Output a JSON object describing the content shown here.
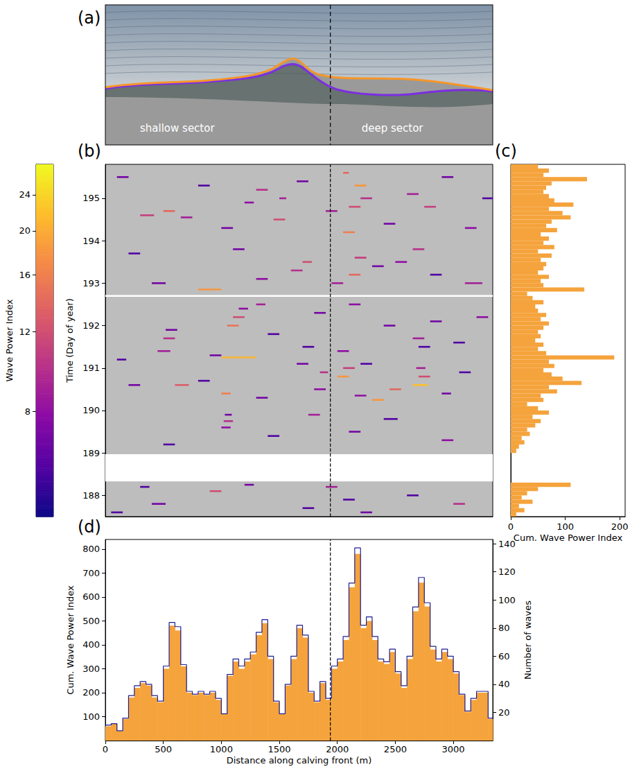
{
  "photo": {
    "title": "(a)",
    "labels": [
      "shallow sector",
      "deep sector"
    ],
    "divider_x": 1940,
    "xlim": [
      0,
      3340
    ]
  },
  "chart_data": [
    {
      "type": "segments",
      "title": "(b)",
      "ylabel": "Time (Day of year)",
      "xlim": [
        0,
        3340
      ],
      "ylim": [
        187.5,
        195.8
      ],
      "yticks": [
        188,
        189,
        190,
        191,
        192,
        193,
        194,
        195
      ],
      "tick_labels": "y",
      "grid": false,
      "divider_x": 1940,
      "no_data": [
        [
          188.33,
          188.97
        ],
        [
          192.68,
          192.72
        ]
      ],
      "colorbar": {
        "label": "Wave Power Index",
        "range": [
          4.7,
          28
        ],
        "ticks": [
          8,
          12,
          16,
          20,
          24
        ],
        "log": true
      },
      "segments": [
        {
          "x0": 50,
          "x1": 150,
          "t": 187.6,
          "wpi": 6
        },
        {
          "x0": 400,
          "x1": 520,
          "t": 187.8,
          "wpi": 7
        },
        {
          "x0": 900,
          "x1": 1000,
          "t": 188.1,
          "wpi": 12
        },
        {
          "x0": 1700,
          "x1": 1800,
          "t": 187.7,
          "wpi": 6
        },
        {
          "x0": 1900,
          "x1": 2000,
          "t": 188.2,
          "wpi": 9
        },
        {
          "x0": 2050,
          "x1": 2150,
          "t": 187.9,
          "wpi": 6
        },
        {
          "x0": 2200,
          "x1": 2300,
          "t": 187.6,
          "wpi": 7
        },
        {
          "x0": 2600,
          "x1": 2700,
          "t": 188.0,
          "wpi": 6
        },
        {
          "x0": 3000,
          "x1": 3100,
          "t": 187.8,
          "wpi": 10
        },
        {
          "x0": 1200,
          "x1": 1280,
          "t": 188.25,
          "wpi": 7
        },
        {
          "x0": 300,
          "x1": 380,
          "t": 188.2,
          "wpi": 6
        },
        {
          "x0": 500,
          "x1": 600,
          "t": 189.2,
          "wpi": 6
        },
        {
          "x0": 1000,
          "x1": 1080,
          "t": 189.6,
          "wpi": 8
        },
        {
          "x0": 1020,
          "x1": 1100,
          "t": 189.75,
          "wpi": 10
        },
        {
          "x0": 1030,
          "x1": 1090,
          "t": 189.9,
          "wpi": 7
        },
        {
          "x0": 1400,
          "x1": 1500,
          "t": 189.4,
          "wpi": 6
        },
        {
          "x0": 2100,
          "x1": 2200,
          "t": 189.5,
          "wpi": 7
        },
        {
          "x0": 2400,
          "x1": 2520,
          "t": 189.8,
          "wpi": 6
        },
        {
          "x0": 2900,
          "x1": 3000,
          "t": 189.3,
          "wpi": 8
        },
        {
          "x0": 1750,
          "x1": 1850,
          "t": 189.9,
          "wpi": 9
        },
        {
          "x0": 600,
          "x1": 720,
          "t": 190.6,
          "wpi": 13
        },
        {
          "x0": 200,
          "x1": 300,
          "t": 190.6,
          "wpi": 7
        },
        {
          "x0": 800,
          "x1": 900,
          "t": 190.7,
          "wpi": 6
        },
        {
          "x0": 1000,
          "x1": 1080,
          "t": 190.4,
          "wpi": 16
        },
        {
          "x0": 1300,
          "x1": 1400,
          "t": 190.3,
          "wpi": 7
        },
        {
          "x0": 1800,
          "x1": 1900,
          "t": 190.5,
          "wpi": 8
        },
        {
          "x0": 1850,
          "x1": 1920,
          "t": 190.9,
          "wpi": 10
        },
        {
          "x0": 2000,
          "x1": 2100,
          "t": 190.8,
          "wpi": 18
        },
        {
          "x0": 2050,
          "x1": 2150,
          "t": 191.0,
          "wpi": 11
        },
        {
          "x0": 2300,
          "x1": 2400,
          "t": 190.25,
          "wpi": 18
        },
        {
          "x0": 2450,
          "x1": 2550,
          "t": 190.5,
          "wpi": 14
        },
        {
          "x0": 2650,
          "x1": 2780,
          "t": 190.6,
          "wpi": 22
        },
        {
          "x0": 2700,
          "x1": 2800,
          "t": 190.8,
          "wpi": 12
        },
        {
          "x0": 2680,
          "x1": 2760,
          "t": 191.0,
          "wpi": 9
        },
        {
          "x0": 2900,
          "x1": 2980,
          "t": 190.4,
          "wpi": 7
        },
        {
          "x0": 3050,
          "x1": 3150,
          "t": 190.9,
          "wpi": 6
        },
        {
          "x0": 2150,
          "x1": 2250,
          "t": 190.35,
          "wpi": 8
        },
        {
          "x0": 100,
          "x1": 180,
          "t": 191.2,
          "wpi": 6
        },
        {
          "x0": 450,
          "x1": 560,
          "t": 191.4,
          "wpi": 9
        },
        {
          "x0": 500,
          "x1": 600,
          "t": 191.7,
          "wpi": 10
        },
        {
          "x0": 520,
          "x1": 620,
          "t": 191.9,
          "wpi": 7
        },
        {
          "x0": 900,
          "x1": 1000,
          "t": 191.3,
          "wpi": 7
        },
        {
          "x0": 1050,
          "x1": 1150,
          "t": 192.0,
          "wpi": 15
        },
        {
          "x0": 1100,
          "x1": 1200,
          "t": 192.2,
          "wpi": 12
        },
        {
          "x0": 1150,
          "x1": 1230,
          "t": 192.4,
          "wpi": 8
        },
        {
          "x0": 1300,
          "x1": 1380,
          "t": 192.5,
          "wpi": 9
        },
        {
          "x0": 1400,
          "x1": 1500,
          "t": 191.8,
          "wpi": 6
        },
        {
          "x0": 1650,
          "x1": 1750,
          "t": 191.1,
          "wpi": 7
        },
        {
          "x0": 1700,
          "x1": 1800,
          "t": 191.5,
          "wpi": 6
        },
        {
          "x0": 1800,
          "x1": 1900,
          "t": 192.3,
          "wpi": 7
        },
        {
          "x0": 2000,
          "x1": 2100,
          "t": 191.4,
          "wpi": 8
        },
        {
          "x0": 2200,
          "x1": 2300,
          "t": 191.1,
          "wpi": 6
        },
        {
          "x0": 2400,
          "x1": 2500,
          "t": 192.0,
          "wpi": 7
        },
        {
          "x0": 2650,
          "x1": 2750,
          "t": 191.7,
          "wpi": 9
        },
        {
          "x0": 2700,
          "x1": 2800,
          "t": 191.5,
          "wpi": 6
        },
        {
          "x0": 2800,
          "x1": 2900,
          "t": 192.1,
          "wpi": 7
        },
        {
          "x0": 3000,
          "x1": 3100,
          "t": 191.6,
          "wpi": 6
        },
        {
          "x0": 3200,
          "x1": 3300,
          "t": 192.2,
          "wpi": 8
        },
        {
          "x0": 2100,
          "x1": 2200,
          "t": 192.5,
          "wpi": 8
        },
        {
          "x0": 1000,
          "x1": 1300,
          "t": 191.25,
          "wpi": 21
        },
        {
          "x0": 800,
          "x1": 1000,
          "t": 192.85,
          "wpi": 18
        },
        {
          "x0": 400,
          "x1": 520,
          "t": 193.0,
          "wpi": 7
        },
        {
          "x0": 1300,
          "x1": 1400,
          "t": 193.1,
          "wpi": 8
        },
        {
          "x0": 1600,
          "x1": 1700,
          "t": 193.3,
          "wpi": 10
        },
        {
          "x0": 1700,
          "x1": 1780,
          "t": 193.5,
          "wpi": 12
        },
        {
          "x0": 1950,
          "x1": 2050,
          "t": 193.0,
          "wpi": 9
        },
        {
          "x0": 2100,
          "x1": 2200,
          "t": 193.2,
          "wpi": 14
        },
        {
          "x0": 2150,
          "x1": 2250,
          "t": 193.6,
          "wpi": 11
        },
        {
          "x0": 2300,
          "x1": 2400,
          "t": 193.4,
          "wpi": 7
        },
        {
          "x0": 2500,
          "x1": 2600,
          "t": 193.5,
          "wpi": 8
        },
        {
          "x0": 2800,
          "x1": 2900,
          "t": 193.2,
          "wpi": 6
        },
        {
          "x0": 3100,
          "x1": 3250,
          "t": 193.0,
          "wpi": 9
        },
        {
          "x0": 200,
          "x1": 300,
          "t": 193.7,
          "wpi": 6
        },
        {
          "x0": 1100,
          "x1": 1200,
          "t": 193.8,
          "wpi": 7
        },
        {
          "x0": 2650,
          "x1": 2750,
          "t": 193.8,
          "wpi": 10
        },
        {
          "x0": 300,
          "x1": 420,
          "t": 194.6,
          "wpi": 11
        },
        {
          "x0": 500,
          "x1": 600,
          "t": 194.7,
          "wpi": 14
        },
        {
          "x0": 650,
          "x1": 750,
          "t": 194.55,
          "wpi": 9
        },
        {
          "x0": 1000,
          "x1": 1100,
          "t": 194.3,
          "wpi": 7
        },
        {
          "x0": 1200,
          "x1": 1280,
          "t": 194.9,
          "wpi": 8
        },
        {
          "x0": 1300,
          "x1": 1400,
          "t": 195.2,
          "wpi": 10
        },
        {
          "x0": 1450,
          "x1": 1550,
          "t": 194.5,
          "wpi": 12
        },
        {
          "x0": 1500,
          "x1": 1560,
          "t": 195.0,
          "wpi": 9
        },
        {
          "x0": 1650,
          "x1": 1750,
          "t": 195.4,
          "wpi": 7
        },
        {
          "x0": 1900,
          "x1": 2000,
          "t": 194.7,
          "wpi": 9
        },
        {
          "x0": 2050,
          "x1": 2150,
          "t": 194.2,
          "wpi": 16
        },
        {
          "x0": 2100,
          "x1": 2200,
          "t": 194.8,
          "wpi": 12
        },
        {
          "x0": 2150,
          "x1": 2250,
          "t": 195.3,
          "wpi": 18
        },
        {
          "x0": 2200,
          "x1": 2300,
          "t": 195.0,
          "wpi": 10
        },
        {
          "x0": 2050,
          "x1": 2100,
          "t": 195.6,
          "wpi": 14
        },
        {
          "x0": 2400,
          "x1": 2500,
          "t": 194.4,
          "wpi": 7
        },
        {
          "x0": 2600,
          "x1": 2700,
          "t": 195.1,
          "wpi": 9
        },
        {
          "x0": 2750,
          "x1": 2850,
          "t": 194.8,
          "wpi": 11
        },
        {
          "x0": 2900,
          "x1": 3000,
          "t": 195.5,
          "wpi": 7
        },
        {
          "x0": 3100,
          "x1": 3200,
          "t": 194.3,
          "wpi": 8
        },
        {
          "x0": 3250,
          "x1": 3340,
          "t": 195.0,
          "wpi": 6
        },
        {
          "x0": 100,
          "x1": 200,
          "t": 195.5,
          "wpi": 7
        },
        {
          "x0": 800,
          "x1": 900,
          "t": 195.3,
          "wpi": 6
        }
      ]
    },
    {
      "type": "histogram",
      "title": "(c)",
      "orientation": "horizontal",
      "xlabel": "Cum. Wave Power Index",
      "xlim": [
        0,
        210
      ],
      "xticks": [
        0,
        100,
        200
      ],
      "ylim": [
        187.5,
        195.8
      ],
      "tick_labels": "x",
      "grid": false,
      "color": "#f5a33c",
      "bins": [
        187.5,
        187.6,
        187.7,
        187.8,
        187.9,
        188.0,
        188.1,
        188.2,
        188.3,
        188.4,
        188.5,
        188.6,
        188.7,
        188.8,
        188.9,
        189.0,
        189.1,
        189.2,
        189.3,
        189.4,
        189.5,
        189.6,
        189.7,
        189.8,
        189.9,
        190.0,
        190.1,
        190.2,
        190.3,
        190.4,
        190.5,
        190.6,
        190.7,
        190.8,
        190.9,
        191.0,
        191.1,
        191.2,
        191.3,
        191.4,
        191.5,
        191.6,
        191.7,
        191.8,
        191.9,
        192.0,
        192.1,
        192.2,
        192.3,
        192.4,
        192.5,
        192.6,
        192.7,
        192.8,
        192.9,
        193.0,
        193.1,
        193.2,
        193.3,
        193.4,
        193.5,
        193.6,
        193.7,
        193.8,
        193.9,
        194.0,
        194.1,
        194.2,
        194.3,
        194.4,
        194.5,
        194.6,
        194.7,
        194.8,
        194.9,
        195.0,
        195.1,
        195.2,
        195.3,
        195.4,
        195.5,
        195.6,
        195.7,
        195.8
      ],
      "values": [
        10,
        25,
        15,
        40,
        20,
        30,
        50,
        110,
        0,
        0,
        0,
        0,
        0,
        0,
        0,
        10,
        15,
        25,
        20,
        35,
        30,
        45,
        55,
        40,
        70,
        50,
        30,
        60,
        55,
        85,
        70,
        130,
        95,
        75,
        60,
        80,
        70,
        190,
        65,
        50,
        60,
        45,
        55,
        50,
        60,
        70,
        55,
        65,
        50,
        45,
        60,
        40,
        30,
        135,
        60,
        55,
        70,
        50,
        60,
        65,
        55,
        75,
        50,
        80,
        60,
        70,
        55,
        85,
        65,
        75,
        110,
        95,
        70,
        115,
        80,
        70,
        60,
        65,
        75,
        140,
        60,
        70,
        50
      ]
    },
    {
      "type": "histogram",
      "title": "(d)",
      "xlabel": "Distance along calving front (m)",
      "ylabel": "Cum. Wave Power Index",
      "y2label": "Number of waves",
      "xlim": [
        0,
        3340
      ],
      "xticks": [
        0,
        500,
        1000,
        1500,
        2000,
        2500,
        3000
      ],
      "ylim": [
        0,
        840
      ],
      "yticks": [
        100,
        200,
        300,
        400,
        500,
        600,
        700,
        800
      ],
      "y2lim": [
        0,
        143
      ],
      "y2ticks": [
        20,
        40,
        60,
        80,
        100,
        120,
        140
      ],
      "grid": false,
      "divider_x": 1940,
      "bins": [
        0,
        50,
        100,
        150,
        200,
        250,
        300,
        350,
        400,
        450,
        500,
        550,
        600,
        650,
        700,
        750,
        800,
        850,
        900,
        950,
        1000,
        1050,
        1100,
        1150,
        1200,
        1250,
        1300,
        1350,
        1400,
        1450,
        1500,
        1550,
        1600,
        1650,
        1700,
        1750,
        1800,
        1850,
        1900,
        1950,
        2000,
        2050,
        2100,
        2150,
        2200,
        2250,
        2300,
        2350,
        2400,
        2450,
        2500,
        2550,
        2600,
        2650,
        2700,
        2750,
        2800,
        2850,
        2900,
        2950,
        3000,
        3050,
        3100,
        3150,
        3200,
        3250,
        3300,
        3340
      ],
      "series": [
        {
          "type": "bar",
          "color": "#f5a33c",
          "values": [
            60,
            70,
            40,
            90,
            180,
            220,
            240,
            230,
            180,
            160,
            300,
            480,
            460,
            310,
            200,
            190,
            200,
            190,
            200,
            170,
            110,
            270,
            330,
            300,
            330,
            360,
            440,
            490,
            340,
            160,
            110,
            230,
            340,
            470,
            430,
            200,
            160,
            240,
            170,
            300,
            330,
            420,
            640,
            780,
            470,
            500,
            420,
            330,
            320,
            370,
            280,
            220,
            340,
            540,
            660,
            560,
            380,
            330,
            370,
            340,
            280,
            190,
            120,
            170,
            200,
            200,
            90
          ]
        },
        {
          "type": "line",
          "line_style": "step",
          "axis": "y2",
          "color": "#1f1f8f",
          "values": [
            11,
            12,
            7,
            16,
            32,
            39,
            42,
            40,
            32,
            28,
            53,
            84,
            81,
            54,
            35,
            33,
            35,
            33,
            35,
            30,
            19,
            47,
            58,
            53,
            58,
            63,
            77,
            86,
            60,
            28,
            19,
            40,
            60,
            82,
            75,
            35,
            28,
            42,
            30,
            53,
            58,
            74,
            112,
            137,
            82,
            88,
            74,
            58,
            56,
            65,
            49,
            39,
            60,
            95,
            116,
            98,
            67,
            58,
            65,
            60,
            49,
            33,
            21,
            30,
            35,
            35,
            16
          ]
        }
      ]
    }
  ]
}
